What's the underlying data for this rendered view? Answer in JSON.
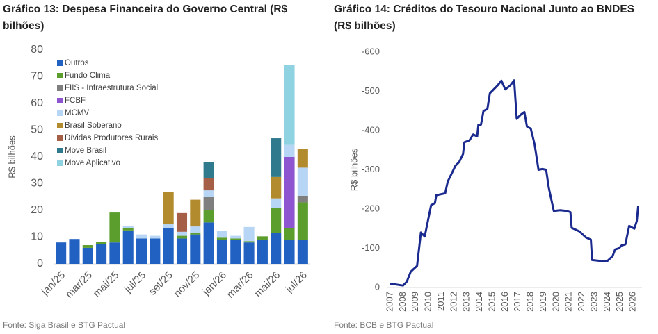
{
  "chart_data": [
    {
      "type": "bar",
      "stacked": true,
      "title": "Gráfico 13: Despesa Financeira do Governo Central (R$ bilhões)",
      "y_label": "R$ bilhões",
      "source": "Fonte: Siga Brasil e BTG Pactual",
      "categories": [
        "jan/25",
        null,
        "mar/25",
        null,
        "mai/25",
        null,
        "jul/25",
        null,
        "set/25",
        null,
        "nov/25",
        null,
        "jan/26",
        null,
        "mar/26",
        null,
        "mai/26",
        null,
        "jul/26"
      ],
      "ylim": [
        0,
        80
      ],
      "yticks": [
        0,
        10,
        20,
        30,
        40,
        50,
        60,
        70,
        80
      ],
      "grid": false,
      "series": [
        {
          "name": "Outros",
          "color": "#2161c2",
          "values": [
            8,
            9.3,
            6,
            7.5,
            8,
            12.5,
            9.5,
            9.5,
            13.5,
            9.5,
            11,
            15.5,
            9,
            9,
            8,
            9,
            11.5,
            9,
            9
          ]
        },
        {
          "name": "Fundo Clima",
          "color": "#5c9e2e",
          "values": [
            0,
            0,
            1,
            0.7,
            11.2,
            1,
            0,
            0,
            0,
            1,
            0.5,
            4.5,
            0.8,
            0.5,
            0.5,
            1.3,
            9.5,
            4.5,
            14
          ]
        },
        {
          "name": "FIIS - Infraestrutura Social",
          "color": "#7f7f7f",
          "values": [
            0,
            0,
            0,
            0,
            0,
            0,
            0,
            0,
            0,
            0,
            0,
            5,
            0,
            0,
            0,
            0,
            0,
            0,
            2.5
          ]
        },
        {
          "name": "FCBF",
          "color": "#8e55d0",
          "values": [
            0,
            0,
            0,
            0,
            0,
            0,
            0,
            0,
            0,
            0,
            0,
            0,
            0,
            0,
            0,
            0,
            0,
            26.5,
            0
          ]
        },
        {
          "name": "MCMV",
          "color": "#b7d5f4",
          "values": [
            0,
            0,
            0,
            0,
            0,
            0.8,
            1.5,
            1,
            1.5,
            1.5,
            2.5,
            2.5,
            2.5,
            1,
            5.3,
            0,
            3.5,
            4.5,
            10.5
          ]
        },
        {
          "name": "Brasil Soberano",
          "color": "#b38b2f",
          "values": [
            0,
            0,
            0,
            0,
            0,
            0,
            0,
            0,
            12,
            0,
            10,
            0,
            0,
            0,
            0,
            0,
            8,
            0,
            7
          ]
        },
        {
          "name": "Dívidas Produtores Rurais",
          "color": "#a45f46",
          "values": [
            0,
            0,
            0,
            0,
            0,
            0,
            0,
            0,
            0,
            7,
            0,
            4.5,
            0,
            0,
            0,
            0,
            0,
            0,
            0
          ]
        },
        {
          "name": "Move Brasil",
          "color": "#2f7b8d",
          "values": [
            0,
            0,
            0,
            0,
            0,
            0,
            0,
            0,
            0,
            0,
            0,
            6,
            0,
            0,
            0,
            0,
            14.5,
            0,
            0
          ]
        },
        {
          "name": "Move Aplicativo",
          "color": "#8fd3e2",
          "values": [
            0,
            0,
            0,
            0,
            0,
            0,
            0,
            0,
            0,
            0,
            0,
            0,
            0,
            0,
            0,
            0,
            0,
            30,
            0
          ]
        }
      ]
    },
    {
      "type": "line",
      "title": "Gráfico 14: Créditos do Tesouro Nacional Junto ao BNDES (R$ bilhões)",
      "y_label": "R$ bilhões",
      "source": "Fonte: BCB e BTG Pactual",
      "xlim": [
        2007,
        2026.7
      ],
      "xticks": [
        2007,
        2008,
        2009,
        2010,
        2011,
        2012,
        2013,
        2014,
        2015,
        2016,
        2017,
        2018,
        2019,
        2020,
        2021,
        2022,
        2023,
        2024,
        2025,
        2026
      ],
      "ylim": [
        0,
        -600
      ],
      "yticks": [
        -600,
        -500,
        -400,
        -300,
        -200,
        -100,
        0
      ],
      "grid": false,
      "series": [
        {
          "name": "Créditos",
          "color": "#1b2a8e",
          "x": [
            2007.0,
            2008.0,
            2008.3,
            2008.6,
            2009.1,
            2009.4,
            2009.7,
            2010.2,
            2010.5,
            2010.6,
            2011.3,
            2011.5,
            2011.8,
            2012.1,
            2012.4,
            2012.7,
            2012.8,
            2013.2,
            2013.5,
            2013.8,
            2013.9,
            2014.1,
            2014.3,
            2014.6,
            2014.8,
            2015.1,
            2015.4,
            2015.7,
            2016.0,
            2016.4,
            2016.7,
            2016.9,
            2017.2,
            2017.5,
            2017.7,
            2018.0,
            2018.3,
            2018.6,
            2018.9,
            2019.2,
            2019.4,
            2019.8,
            2020.3,
            2020.8,
            2021.1,
            2021.2,
            2021.8,
            2022.3,
            2022.7,
            2022.8,
            2023.4,
            2024.0,
            2024.4,
            2024.6,
            2024.9,
            2025.1,
            2025.4,
            2025.7,
            2026.1,
            2026.3,
            2026.4
          ],
          "values": [
            -10,
            -5,
            -15,
            -40,
            -55,
            -140,
            -130,
            -210,
            -215,
            -235,
            -240,
            -270,
            -290,
            -310,
            -320,
            -340,
            -370,
            -375,
            -390,
            -385,
            -415,
            -415,
            -450,
            -455,
            -495,
            -505,
            -515,
            -527,
            -505,
            -515,
            -528,
            -430,
            -440,
            -447,
            -410,
            -405,
            -365,
            -300,
            -302,
            -300,
            -255,
            -195,
            -197,
            -195,
            -192,
            -152,
            -143,
            -128,
            -122,
            -70,
            -68,
            -68,
            -80,
            -97,
            -100,
            -107,
            -110,
            -157,
            -150,
            -170,
            -207
          ]
        }
      ]
    }
  ]
}
